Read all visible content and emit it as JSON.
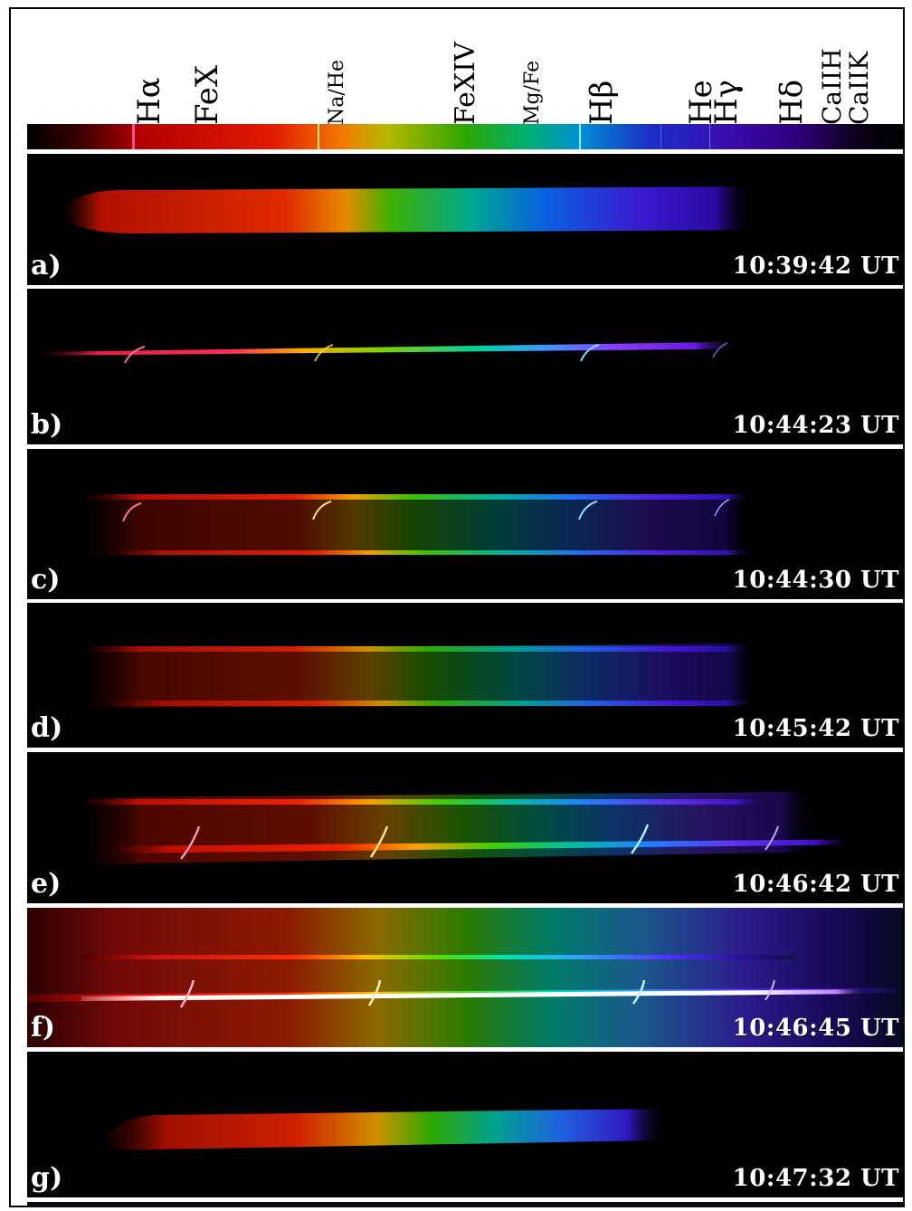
{
  "spectral_lines": [
    {
      "label": "Hα",
      "size": 34
    },
    {
      "label": "FeX",
      "size": 34
    },
    {
      "label": "Na/He",
      "size": 22
    },
    {
      "label": "FeXIV",
      "size": 30
    },
    {
      "label": "Mg/Fe",
      "size": 22
    },
    {
      "label": "Hβ",
      "size": 34
    },
    {
      "label": "He",
      "size": 34
    },
    {
      "label": "Hγ",
      "size": 34
    },
    {
      "label": "Hδ",
      "size": 34
    },
    {
      "label": "CaIIH",
      "size": 28
    },
    {
      "label": "CaIIK",
      "size": 28
    }
  ],
  "panels": [
    {
      "letter": "a)",
      "time": "10:39:42 UT"
    },
    {
      "letter": "b)",
      "time": "10:44:23 UT"
    },
    {
      "letter": "c)",
      "time": "10:44:30 UT"
    },
    {
      "letter": "d)",
      "time": "10:45:42 UT"
    },
    {
      "letter": "e)",
      "time": "10:46:42 UT"
    },
    {
      "letter": "f)",
      "time": "10:46:45 UT"
    },
    {
      "letter": "g)",
      "time": "10:47:32 UT"
    }
  ],
  "colors": {
    "frame": "#000000",
    "background": "#ffffff",
    "panel_background": "#000000",
    "text_overlay": "#ffffff"
  }
}
